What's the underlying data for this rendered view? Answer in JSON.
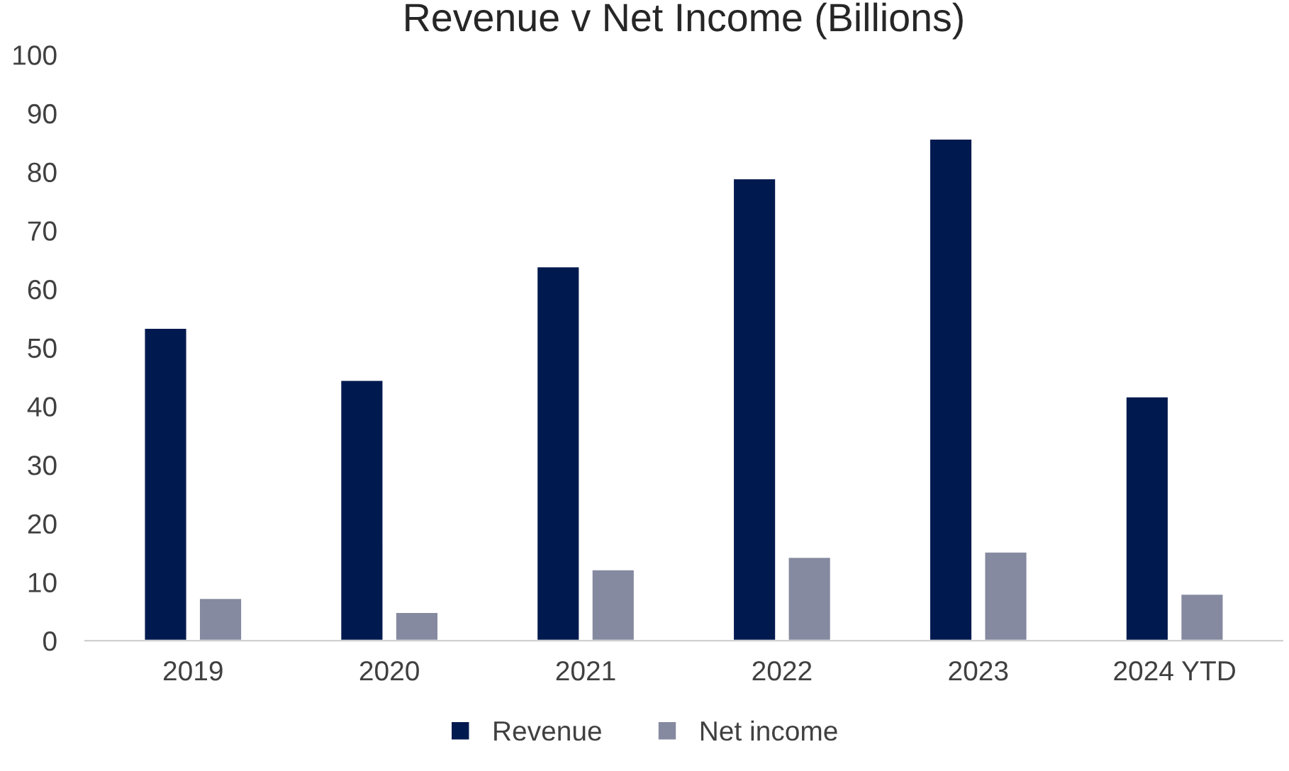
{
  "chart_data": {
    "type": "bar",
    "title": "Revenue v Net Income (Billions)",
    "categories": [
      "2019",
      "2020",
      "2021",
      "2022",
      "2023",
      "2024 YTD"
    ],
    "series": [
      {
        "name": "Revenue",
        "color": "#001a4f",
        "values": [
          53.4,
          44.5,
          63.9,
          78.9,
          85.7,
          41.7
        ]
      },
      {
        "name": "Net income",
        "color": "#868aa0",
        "values": [
          7.3,
          4.9,
          12.2,
          14.3,
          15.2,
          8.0
        ]
      }
    ],
    "ylim": [
      0,
      100
    ],
    "yticks": [
      0,
      10,
      20,
      30,
      40,
      50,
      60,
      70,
      80,
      90,
      100
    ],
    "grid": false,
    "legend": "bottom"
  }
}
